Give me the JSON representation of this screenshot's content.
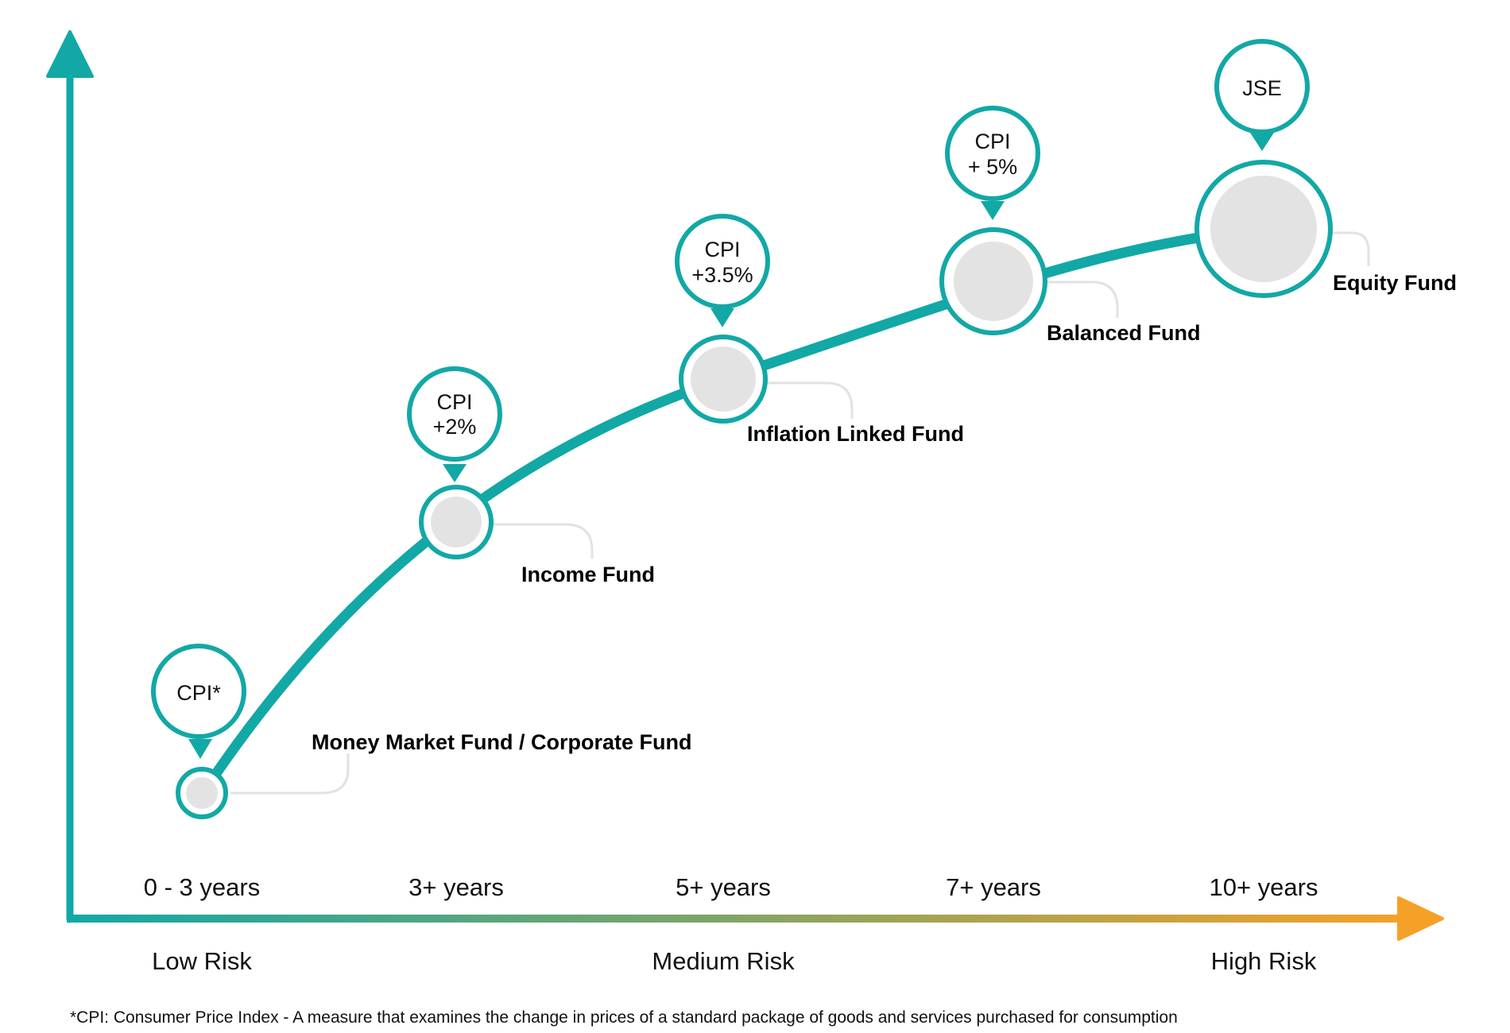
{
  "colors": {
    "teal": "#12A8A6",
    "orange": "#F5A128",
    "node_fill": "#E3E3E3",
    "leader": "#E2E2E2"
  },
  "axes": {
    "y_arrow": "up-arrow-icon",
    "x_arrow": "right-arrow-icon"
  },
  "time_horizons": [
    "0 - 3 years",
    "3+ years",
    "5+ years",
    "7+ years",
    "10+ years"
  ],
  "risk_levels": [
    "Low Risk",
    "Medium Risk",
    "High Risk"
  ],
  "funds": [
    {
      "label": "Money Market Fund / Corporate Fund",
      "target": [
        "CPI*"
      ]
    },
    {
      "label": "Income Fund",
      "target": [
        "CPI",
        "+2%"
      ]
    },
    {
      "label": "Inflation Linked Fund",
      "target": [
        "CPI",
        "+3.5%"
      ]
    },
    {
      "label": "Balanced Fund",
      "target": [
        "CPI",
        "+ 5%"
      ]
    },
    {
      "label": "Equity Fund",
      "target": [
        "JSE"
      ]
    }
  ],
  "footnote": "*CPI: Consumer Price Index  - A measure that examines the change in prices of a standard package of goods and services purchased for consumption"
}
